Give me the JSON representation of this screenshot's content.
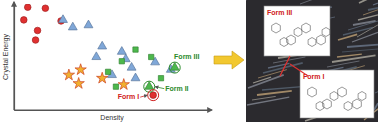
{
  "chart_data": {
    "type": "scatter",
    "x_label": "Density",
    "y_label": "Crystal Energy",
    "xlim": [
      0,
      100
    ],
    "ylim": [
      0,
      100
    ],
    "xticks": [],
    "yticks": [],
    "tick_labels": false,
    "grid": false,
    "series": [
      {
        "color": "#e03030",
        "marker": "circle",
        "x": [
          7,
          16,
          5,
          24,
          12,
          11,
          71
        ],
        "y": [
          97,
          96,
          85,
          84,
          75,
          66,
          14
        ]
      },
      {
        "color": "#7fa7d8",
        "marker": "triangle",
        "x": [
          25,
          30,
          38,
          45,
          55,
          42,
          57,
          60,
          72,
          50,
          62,
          80
        ],
        "y": [
          85,
          78,
          80,
          60,
          55,
          50,
          48,
          40,
          45,
          33,
          30,
          38
        ]
      },
      {
        "color": "#4cb84c",
        "marker": "square",
        "x": [
          62,
          55,
          70,
          48,
          75,
          52
        ],
        "y": [
          57,
          46,
          50,
          36,
          30,
          22
        ]
      },
      {
        "color": "#f0b030",
        "marker": "star",
        "x": [
          28,
          34,
          33,
          45,
          56
        ],
        "y": [
          33,
          38,
          25,
          30,
          24
        ]
      },
      {
        "color": "#4cb84c",
        "marker": "triangle",
        "x": [
          69,
          82
        ],
        "y": [
          22,
          40
        ]
      }
    ],
    "annotations": [
      {
        "text": "Form III",
        "x": 82,
        "y": 40,
        "color": "#2a8a2a"
      },
      {
        "text": "Form II",
        "x": 69,
        "y": 22,
        "color": "#2a8a2a"
      },
      {
        "text": "Form I",
        "x": 71,
        "y": 14,
        "color": "#d02020"
      }
    ],
    "image_labels": [
      "Form III",
      "Form I"
    ]
  }
}
